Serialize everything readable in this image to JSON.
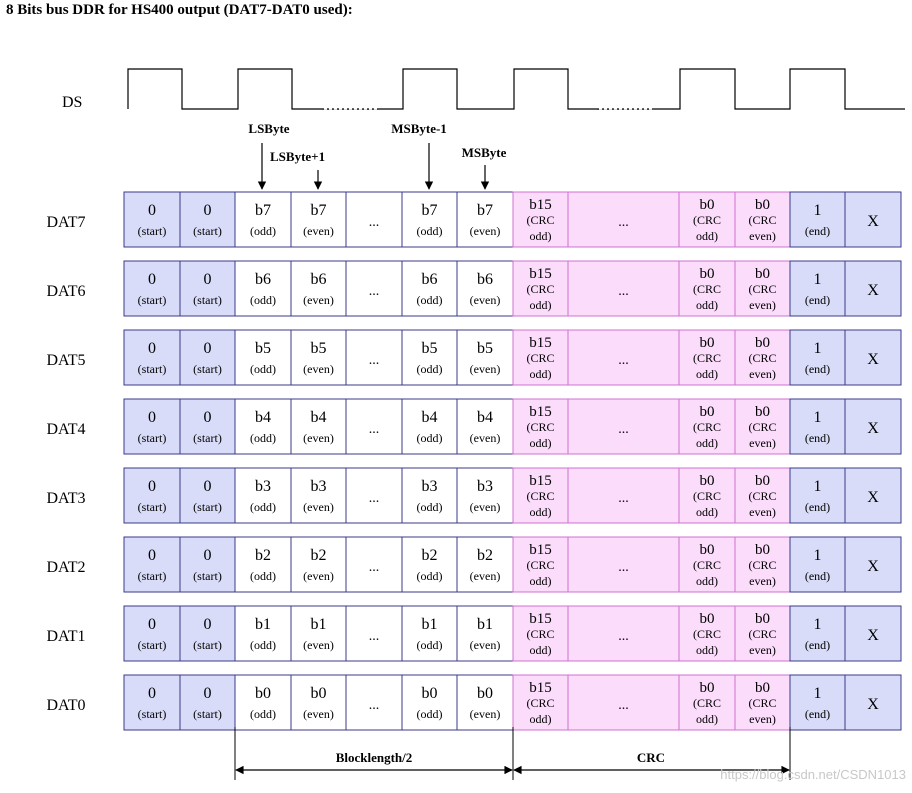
{
  "title": "8 Bits bus DDR for HS400 output (DAT7-DAT0 used):",
  "ds_label": "DS",
  "pointers": [
    {
      "label": "LSByte"
    },
    {
      "label": "LSByte+1"
    },
    {
      "label": "MSByte-1"
    },
    {
      "label": "MSByte"
    }
  ],
  "lines": [
    {
      "name": "DAT7",
      "bit": "b7"
    },
    {
      "name": "DAT6",
      "bit": "b6"
    },
    {
      "name": "DAT5",
      "bit": "b5"
    },
    {
      "name": "DAT4",
      "bit": "b4"
    },
    {
      "name": "DAT3",
      "bit": "b3"
    },
    {
      "name": "DAT2",
      "bit": "b2"
    },
    {
      "name": "DAT1",
      "bit": "b1"
    },
    {
      "name": "DAT0",
      "bit": "b0"
    }
  ],
  "cells": {
    "start_value": "0",
    "start_sub": "(start)",
    "odd_sub": "(odd)",
    "even_sub": "(even)",
    "ellipsis": "...",
    "crc_first": "b15",
    "crc_last": "b0",
    "crc_sub": "(CRC",
    "crc_odd": "odd)",
    "crc_even": "even)",
    "end_value": "1",
    "end_sub": "(end)",
    "idle": "X"
  },
  "spans": {
    "blocklength": "Blocklength/2",
    "crc": "CRC"
  },
  "watermark": "https://blog.csdn.net/CSDN1013",
  "colors": {
    "start_end_fill": "#d8dcf8",
    "crc_fill": "#fbdcfb",
    "data_fill": "#ffffff",
    "border": "#3a3a8a",
    "crc_border": "#d070d0"
  }
}
